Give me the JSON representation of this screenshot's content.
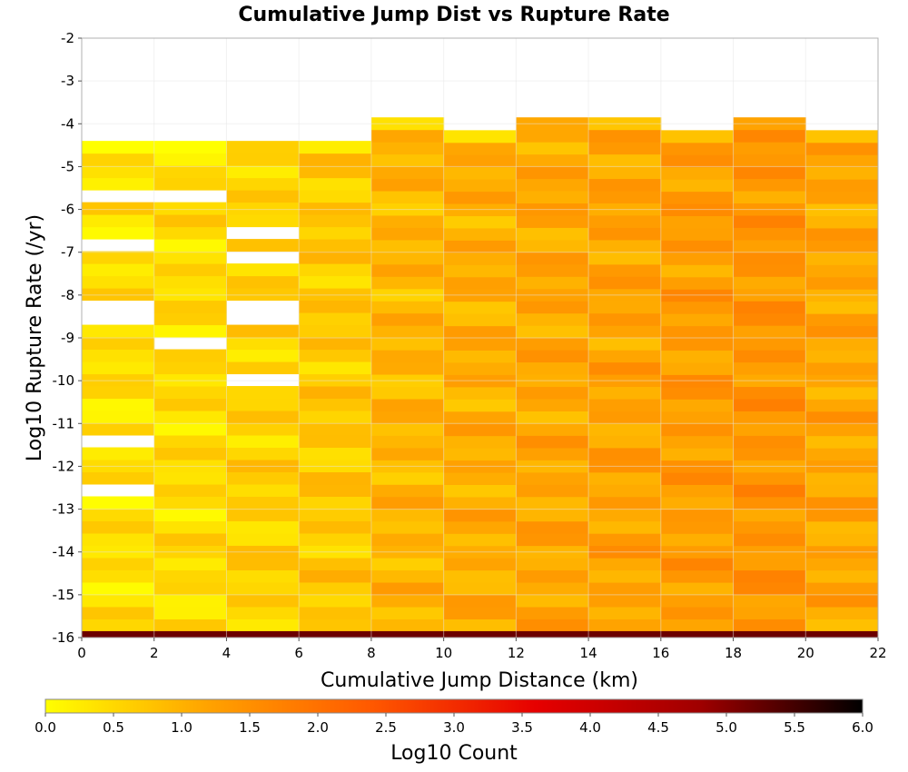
{
  "chart_data": {
    "type": "heatmap",
    "title": "Cumulative Jump Dist vs Rupture Rate",
    "xlabel": "Cumulative Jump Distance (km)",
    "ylabel": "Log10 Rupture Rate (/yr)",
    "xlim": [
      0,
      22
    ],
    "ylim": [
      -16,
      -2
    ],
    "x_ticks": [
      "0",
      "2",
      "4",
      "6",
      "8",
      "10",
      "12",
      "14",
      "16",
      "18",
      "20",
      "22"
    ],
    "y_ticks": [
      "-2",
      "-3",
      "-4",
      "-5",
      "-6",
      "-7",
      "-8",
      "-9",
      "-10",
      "-11",
      "-12",
      "-13",
      "-14",
      "-15",
      "-16"
    ],
    "grid": true,
    "x_bin_width_km": 2,
    "y_bin_height": 0.2857,
    "colorbar": {
      "label": "Log10 Count",
      "range": [
        0,
        6
      ],
      "ticks": [
        "0.0",
        "0.5",
        "1.0",
        "1.5",
        "2.0",
        "2.5",
        "3.0",
        "3.5",
        "4.0",
        "4.5",
        "5.0",
        "5.5",
        "6.0"
      ],
      "colors": [
        "#ffff00",
        "#ffa200",
        "#ff5800",
        "#e60000",
        "#a00000",
        "#000000"
      ]
    },
    "column_tops": [
      -4.4,
      -4.4,
      -4.4,
      -4.4,
      -3.85,
      -4.15,
      -3.85,
      -3.85,
      -4.15,
      -3.85,
      -4.15
    ],
    "column_base_values": [
      0.4,
      0.45,
      0.6,
      0.7,
      0.95,
      1.05,
      1.15,
      1.2,
      1.3,
      1.4,
      1.15
    ],
    "empty_cells": [
      {
        "x_bin": 0,
        "y_ranges": [
          [
            -5.85,
            -5.6
          ],
          [
            -6.95,
            -6.7
          ],
          [
            -8.7,
            -8.15
          ],
          [
            -11.65,
            -11.3
          ],
          [
            -12.7,
            -12.45
          ]
        ]
      },
      {
        "x_bin": 1,
        "y_ranges": [
          [
            -5.85,
            -5.6
          ],
          [
            -9.25,
            -9.0
          ]
        ]
      },
      {
        "x_bin": 2,
        "y_ranges": [
          [
            -6.7,
            -6.45
          ],
          [
            -7.25,
            -7.0
          ],
          [
            -8.7,
            -8.15
          ],
          [
            -10.2,
            -9.95
          ]
        ]
      }
    ],
    "bottom_row": {
      "y_range": [
        -16,
        -15.85
      ],
      "value": 5.2
    }
  }
}
